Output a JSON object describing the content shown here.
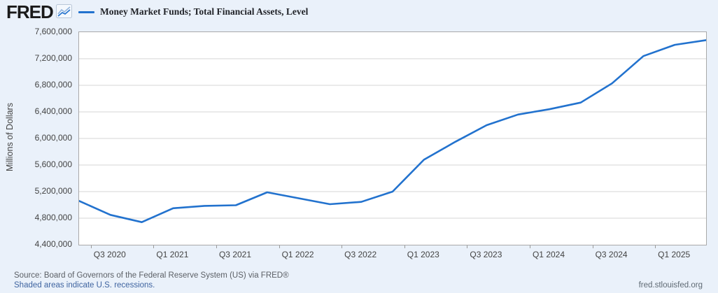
{
  "header": {
    "logo_text": "FRED",
    "legend_label": "Money Market Funds; Total Financial Assets, Level"
  },
  "footer": {
    "source_line": "Source: Board of Governors of the Federal Reserve System (US) via FRED®",
    "recession_note": "Shaded areas indicate U.S. recessions.",
    "site_url": "fred.stlouisfed.org"
  },
  "colors": {
    "line": "#2272ce",
    "background": "#eaf1fa",
    "plot_background": "#ffffff",
    "grid": "#d4d4d4",
    "plot_border": "#a9a9a9",
    "tick_text": "#434343"
  },
  "chart_data": {
    "type": "line",
    "title": "Money Market Funds; Total Financial Assets, Level",
    "xlabel": "",
    "ylabel": "Millions of Dollars",
    "units": "Millions of Dollars",
    "frequency": "Quarterly",
    "grid": true,
    "legend_position": "top",
    "ylim": [
      4400000,
      7600000
    ],
    "y_tick_step": 400000,
    "y_tick_labels": [
      "7,600,000",
      "7,200,000",
      "6,800,000",
      "6,400,000",
      "6,000,000",
      "5,600,000",
      "5,200,000",
      "4,800,000",
      "4,400,000"
    ],
    "x": [
      "Q2 2020",
      "Q3 2020",
      "Q4 2020",
      "Q1 2021",
      "Q2 2021",
      "Q3 2021",
      "Q4 2021",
      "Q1 2022",
      "Q2 2022",
      "Q3 2022",
      "Q4 2022",
      "Q1 2023",
      "Q2 2023",
      "Q3 2023",
      "Q4 2023",
      "Q1 2024",
      "Q2 2024",
      "Q3 2024",
      "Q4 2024",
      "Q1 2025",
      "Q2 2025"
    ],
    "series": [
      {
        "name": "Money Market Funds; Total Financial Assets, Level",
        "color": "#2272ce",
        "values": [
          5060000,
          4850000,
          4740000,
          4950000,
          4985000,
          4995000,
          5190000,
          5100000,
          5010000,
          5045000,
          5200000,
          5680000,
          5950000,
          6200000,
          6360000,
          6440000,
          6540000,
          6830000,
          7240000,
          7410000,
          7480000
        ]
      }
    ],
    "x_tick_labels": [
      "Q3 2020",
      "Q1 2021",
      "Q3 2021",
      "Q1 2022",
      "Q3 2022",
      "Q1 2023",
      "Q3 2023",
      "Q1 2024",
      "Q3 2024",
      "Q1 2025"
    ],
    "x_tick_data_indices": [
      1,
      3,
      5,
      7,
      9,
      11,
      13,
      15,
      17,
      19
    ]
  }
}
